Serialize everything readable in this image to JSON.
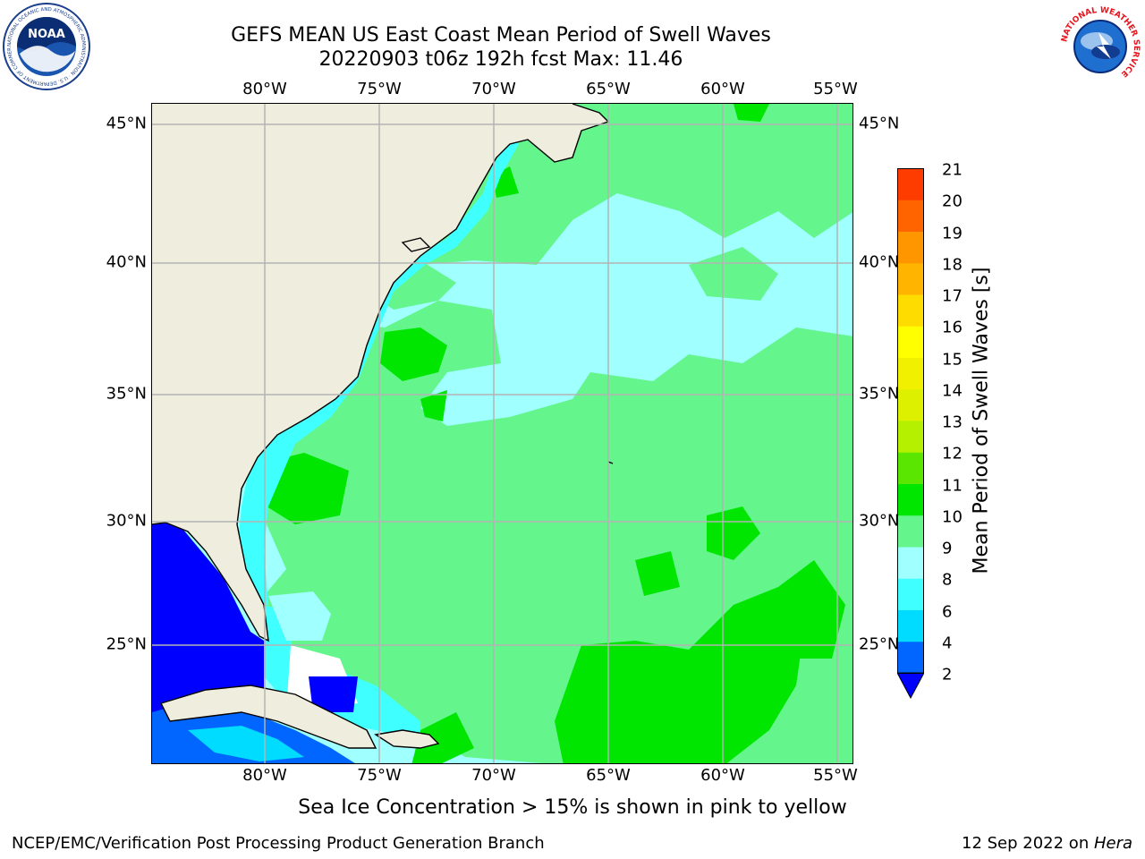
{
  "title_line1": "GEFS MEAN US East Coast Mean Period of Swell Waves",
  "title_line2": "20220903 t06z 192h fcst   Max: 11.46",
  "longitude_ticks": [
    "80°W",
    "75°W",
    "70°W",
    "65°W",
    "60°W",
    "55°W"
  ],
  "latitude_ticks": [
    "45°N",
    "40°N",
    "35°N",
    "30°N",
    "25°N"
  ],
  "colorbar": {
    "title": "Mean Period of Swell Waves [s]",
    "levels": [
      "2",
      "4",
      "6",
      "8",
      "9",
      "10",
      "11",
      "12",
      "13",
      "14",
      "15",
      "16",
      "17",
      "18",
      "19",
      "20",
      "21"
    ],
    "colors": [
      "#0066ff",
      "#00dcff",
      "#40ffff",
      "#a0ffff",
      "#64f58c",
      "#00e600",
      "#5ae600",
      "#b4f000",
      "#dcf000",
      "#f0f000",
      "#ffff00",
      "#ffdc00",
      "#ffb400",
      "#ff9600",
      "#ff6400",
      "#ff3c00",
      "#ff0000"
    ],
    "under_color": "#0000ff"
  },
  "footnote": "Sea Ice Concentration > 15% is shown in pink to yellow",
  "credit_left": "NCEP/EMC/Verification Post Processing Product Generation Branch",
  "credit_right_prefix": "12 Sep 2022 on ",
  "credit_right_host": "Hera",
  "logos": {
    "left": "noaa-logo",
    "left_text": "NOAA",
    "left_ring_text": "NATIONAL OCEANIC AND ATMOSPHERIC ADMINISTRATION · U.S. DEPARTMENT OF COMMERCE",
    "right": "nws-logo",
    "right_ring_text": "NATIONAL WEATHER SERVICE"
  },
  "colors": {
    "land": "#efedde",
    "grid": "#b4b4b4",
    "coast": "#000000"
  }
}
